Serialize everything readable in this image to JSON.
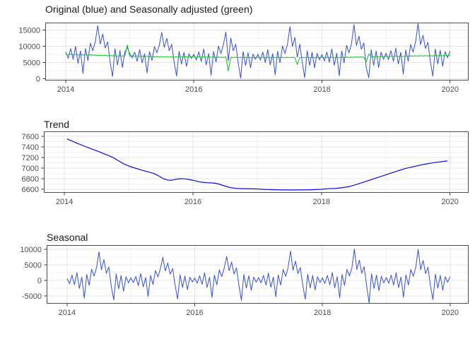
{
  "page": {
    "background": "#ffffff"
  },
  "chart_data": {
    "note": "three stacked time-series panels of an STL-style decomposition; see charts array"
  },
  "charts": [
    {
      "id": "original-adjusted",
      "type": "line",
      "title": "Original (blue) and Seasonally adjusted (green)",
      "x_ticks": [
        "2014",
        "2016",
        "2018",
        "2020"
      ],
      "x_tick_values": [
        2014,
        2016,
        2018,
        2020
      ],
      "x_minor_values": [
        2015,
        2017,
        2019
      ],
      "xlim": [
        2013.68,
        2020.29
      ],
      "y_ticks": [
        "0",
        "5000",
        "10000",
        "15000"
      ],
      "y_tick_values": [
        0,
        5000,
        10000,
        15000
      ],
      "y_minor_values": [
        2500,
        7500,
        12500
      ],
      "ylim": [
        -543,
        17283
      ],
      "grid": true,
      "x_start": 2014,
      "x_step": 0.0384615,
      "series": [
        {
          "name": "Original",
          "color": "#3350d8",
          "width": 1,
          "sum_refs": [
            "charts.0.series.1.values",
            "charts.2.series.0.values"
          ]
        },
        {
          "name": "Seasonally adjusted",
          "color": "#1fc32b",
          "width": 1.1,
          "values": [
            7620,
            7400,
            7560,
            7330,
            7510,
            7290,
            7460,
            7310,
            7400,
            7210,
            7370,
            7240,
            7310,
            7150,
            7270,
            7090,
            7230,
            7050,
            7170,
            7010,
            7140,
            6960,
            7090,
            6930,
            7050,
            10400,
            6900,
            7120,
            6850,
            7060,
            6800,
            7010,
            6760,
            6960,
            6730,
            6930,
            6700,
            6890,
            6680,
            6850,
            6650,
            6830,
            6640,
            6800,
            6620,
            6820,
            6640,
            6840,
            6660,
            6810,
            6650,
            6790,
            6820,
            6640,
            6780,
            6620,
            6760,
            6600,
            6740,
            6580,
            6700,
            6560,
            6680,
            6540,
            6660,
            6700,
            2400,
            6620,
            6500,
            6640,
            6520,
            6600,
            6480,
            6580,
            6500,
            6560,
            6480,
            6540,
            6650,
            6520,
            6630,
            6500,
            6610,
            6490,
            6640,
            6510,
            6620,
            6480,
            6600,
            6470,
            6630,
            6520,
            6610,
            6490,
            4400,
            6530,
            6580,
            6450,
            6600,
            6480,
            6560,
            6470,
            6590,
            6500,
            6640,
            6500,
            6620,
            6490,
            6650,
            6520,
            6630,
            6500,
            6660,
            6530,
            6680,
            6550,
            6700,
            6580,
            6730,
            6600,
            6760,
            6640,
            5200,
            7600,
            6820,
            6700,
            6860,
            6740,
            6900,
            6780,
            6940,
            6800,
            6960,
            6830,
            6990,
            6860,
            7010,
            6880,
            7030,
            6900,
            7050,
            6930,
            7080,
            6950,
            7100,
            6970,
            7110,
            6990,
            7130,
            7010,
            7150,
            7030,
            7160,
            7050,
            7170,
            7080,
            7250
          ]
        }
      ]
    },
    {
      "id": "trend",
      "type": "line",
      "title": "Trend",
      "x_ticks": [
        "2014",
        "2016",
        "2018",
        "2020"
      ],
      "x_tick_values": [
        2014,
        2016,
        2018,
        2020
      ],
      "x_minor_values": [
        2015,
        2017,
        2019
      ],
      "xlim": [
        2013.68,
        2020.29
      ],
      "y_ticks": [
        "6600",
        "6800",
        "7000",
        "7200",
        "7400",
        "7600"
      ],
      "y_tick_values": [
        6600,
        6800,
        7000,
        7200,
        7400,
        7600
      ],
      "y_minor_values": [
        6700,
        6900,
        7100,
        7300,
        7500
      ],
      "ylim": [
        6533,
        7693
      ],
      "grid": true,
      "series": [
        {
          "name": "Trend",
          "color": "#0b0be0",
          "width": 1.2,
          "points": [
            [
              2014.04,
              7550
            ],
            [
              2014.12,
              7510
            ],
            [
              2014.2,
              7468
            ],
            [
              2014.3,
              7420
            ],
            [
              2014.4,
              7372
            ],
            [
              2014.5,
              7328
            ],
            [
              2014.6,
              7278
            ],
            [
              2014.7,
              7230
            ],
            [
              2014.77,
              7190
            ],
            [
              2014.85,
              7132
            ],
            [
              2014.92,
              7082
            ],
            [
              2015.0,
              7040
            ],
            [
              2015.1,
              7000
            ],
            [
              2015.2,
              6962
            ],
            [
              2015.3,
              6930
            ],
            [
              2015.38,
              6902
            ],
            [
              2015.46,
              6858
            ],
            [
              2015.54,
              6800
            ],
            [
              2015.6,
              6775
            ],
            [
              2015.66,
              6768
            ],
            [
              2015.73,
              6788
            ],
            [
              2015.8,
              6800
            ],
            [
              2015.88,
              6795
            ],
            [
              2015.96,
              6780
            ],
            [
              2016.04,
              6758
            ],
            [
              2016.12,
              6735
            ],
            [
              2016.22,
              6724
            ],
            [
              2016.32,
              6718
            ],
            [
              2016.4,
              6700
            ],
            [
              2016.5,
              6660
            ],
            [
              2016.58,
              6632
            ],
            [
              2016.68,
              6616
            ],
            [
              2016.8,
              6612
            ],
            [
              2016.95,
              6608
            ],
            [
              2017.1,
              6598
            ],
            [
              2017.25,
              6592
            ],
            [
              2017.4,
              6588
            ],
            [
              2017.55,
              6586
            ],
            [
              2017.7,
              6588
            ],
            [
              2017.85,
              6592
            ],
            [
              2018.0,
              6600
            ],
            [
              2018.1,
              6610
            ],
            [
              2018.2,
              6616
            ],
            [
              2018.3,
              6626
            ],
            [
              2018.42,
              6648
            ],
            [
              2018.55,
              6692
            ],
            [
              2018.7,
              6752
            ],
            [
              2018.85,
              6812
            ],
            [
              2019.0,
              6872
            ],
            [
              2019.15,
              6932
            ],
            [
              2019.3,
              6990
            ],
            [
              2019.45,
              7032
            ],
            [
              2019.6,
              7072
            ],
            [
              2019.75,
              7102
            ],
            [
              2019.9,
              7126
            ],
            [
              2019.96,
              7134
            ]
          ]
        }
      ]
    },
    {
      "id": "seasonal",
      "type": "line",
      "title": "Seasonal",
      "x_ticks": [
        "2014",
        "2016",
        "2018",
        "2020"
      ],
      "x_tick_values": [
        2014,
        2016,
        2018,
        2020
      ],
      "x_minor_values": [
        2015,
        2017,
        2019
      ],
      "xlim": [
        2013.68,
        2020.29
      ],
      "y_ticks": [
        "-5000",
        "0",
        "5000",
        "10000"
      ],
      "y_tick_values": [
        -5000,
        0,
        5000,
        10000
      ],
      "y_minor_values": [
        -2500,
        2500,
        7500
      ],
      "ylim": [
        -7500,
        11364
      ],
      "grid": true,
      "x_start": 2014,
      "x_step": 0.0384615,
      "series": [
        {
          "name": "Seasonal",
          "color": "#3350d8",
          "width": 1,
          "values": [
            600,
            -1100,
            1700,
            -1400,
            2500,
            -2600,
            1100,
            -5700,
            1900,
            -1600,
            3600,
            1400,
            4100,
            9200,
            3400,
            6700,
            2300,
            4300,
            -1900,
            -6300,
            2100,
            -2700,
            1600,
            -3500,
            1200,
            -800,
            800,
            -700,
            1300,
            -1700,
            2200,
            -2100,
            900,
            -5200,
            1600,
            -1300,
            3200,
            1100,
            3700,
            7400,
            3000,
            5600,
            2000,
            3800,
            -1500,
            -6000,
            1800,
            -2300,
            1400,
            -3000,
            1000,
            -500,
            700,
            -900,
            1500,
            -1300,
            2400,
            -2300,
            1000,
            -5500,
            1700,
            -1400,
            3400,
            1200,
            3900,
            7700,
            3100,
            5900,
            2100,
            4000,
            -1700,
            -6400,
            1900,
            -2500,
            1500,
            -3200,
            1100,
            -600,
            900,
            -800,
            1600,
            -1500,
            2300,
            -2200,
            1100,
            -5300,
            1800,
            -1500,
            3500,
            1300,
            4000,
            9500,
            3300,
            6200,
            2200,
            4100,
            -1600,
            -6100,
            2000,
            -2400,
            1600,
            -3100,
            1200,
            -700,
            800,
            -1000,
            1600,
            -1400,
            2500,
            -2400,
            1200,
            -5600,
            1900,
            -1600,
            3600,
            1400,
            4100,
            10100,
            3500,
            6500,
            2300,
            4400,
            -1800,
            -7300,
            2100,
            -2600,
            1700,
            -3300,
            1300,
            -800,
            900,
            -900,
            1700,
            -1500,
            2400,
            -2300,
            1100,
            -5400,
            1800,
            -1500,
            3500,
            1300,
            4200,
            10000,
            3400,
            6400,
            2200,
            4200,
            -1700,
            -6200,
            2000,
            -2500,
            1600,
            -3200,
            1200,
            -600,
            1200
          ]
        }
      ]
    }
  ],
  "style": {
    "grid_major_color": "#e4e4e4",
    "grid_minor_color": "#f1f1f1",
    "panel_border_color": "#4d4d4d",
    "tick_color": "#333333",
    "axis_text_color": "#4d4d4d"
  }
}
